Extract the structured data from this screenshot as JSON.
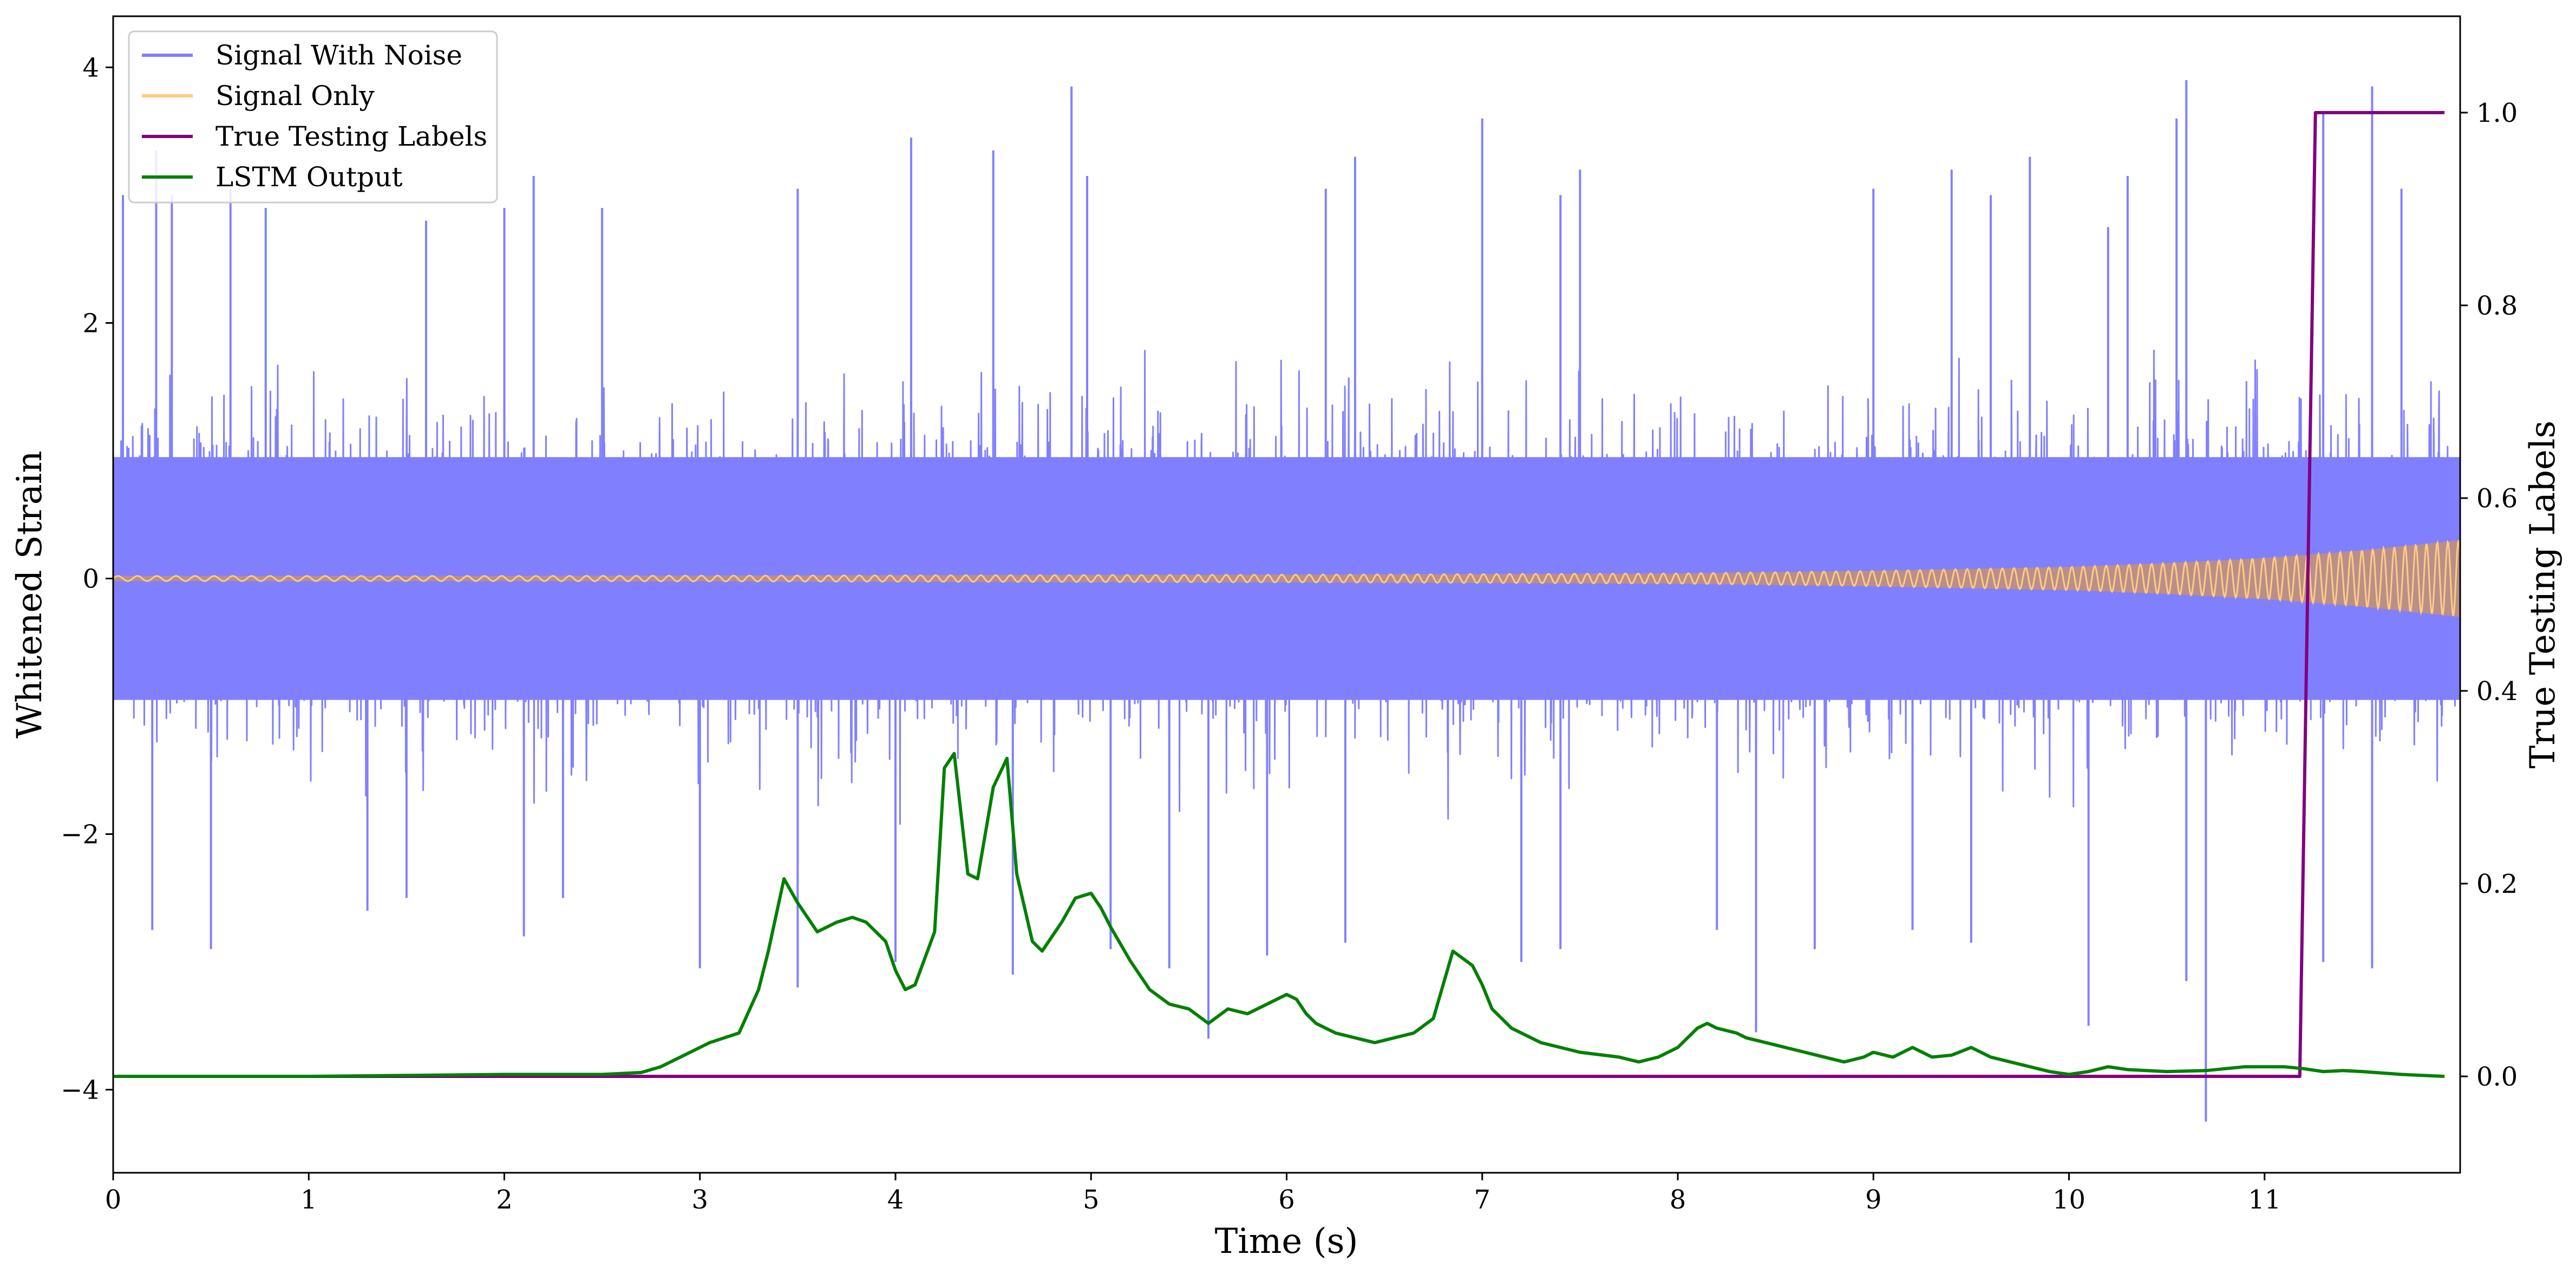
{
  "chart_data": {
    "type": "line",
    "title": "",
    "xlabel": "Time (s)",
    "ylabel_left": "Whitened Strain",
    "ylabel_right": "True Testing Labels",
    "xlim": [
      0,
      12
    ],
    "ylim_left": [
      -4.65,
      4.4
    ],
    "ylim_right": [
      -0.1,
      1.1
    ],
    "x_ticks": [
      0,
      1,
      2,
      3,
      4,
      5,
      6,
      7,
      8,
      9,
      10,
      11
    ],
    "x_tick_labels": [
      "0",
      "1",
      "2",
      "3",
      "4",
      "5",
      "6",
      "7",
      "8",
      "9",
      "10",
      "11"
    ],
    "y_left_ticks": [
      -4,
      -2,
      0,
      2,
      4
    ],
    "y_left_tick_labels": [
      "−4",
      "−2",
      "0",
      "2",
      "4"
    ],
    "y_right_ticks": [
      0.0,
      0.2,
      0.4,
      0.6,
      0.8,
      1.0
    ],
    "y_right_tick_labels": [
      "0.0",
      "0.2",
      "0.4",
      "0.6",
      "0.8",
      "1.0"
    ],
    "grid": false,
    "legend_position": "top-left",
    "colors": {
      "signal_with_noise": "#8080ff",
      "signal_only": "#ffcc80",
      "overlap_band": "#c0907c",
      "true_labels": "#800080",
      "lstm_output": "#008000"
    },
    "series": [
      {
        "name": "Signal With Noise",
        "axis": "left",
        "color": "#8080ff",
        "description_stats": {
          "approx_std": 0.55,
          "min": -4.25,
          "max": 3.95
        }
      },
      {
        "name": "Signal Only",
        "axis": "left",
        "color": "#ffcc80",
        "amplitude_envelope": {
          "x": [
            0,
            2,
            4,
            6,
            8,
            9,
            10,
            10.5,
            11,
            11.5,
            12
          ],
          "y": [
            0.02,
            0.02,
            0.025,
            0.03,
            0.04,
            0.06,
            0.09,
            0.12,
            0.16,
            0.22,
            0.3
          ]
        }
      },
      {
        "name": "True Testing Labels",
        "axis": "right",
        "color": "#800080",
        "x": [
          0,
          11.18,
          11.26,
          11.92
        ],
        "y": [
          0.0,
          0.0,
          1.0,
          1.0
        ]
      },
      {
        "name": "LSTM Output",
        "axis": "right",
        "color": "#008000",
        "x": [
          0,
          0.5,
          1.0,
          1.5,
          2.0,
          2.5,
          2.7,
          2.8,
          2.9,
          3.0,
          3.05,
          3.2,
          3.3,
          3.35,
          3.43,
          3.5,
          3.6,
          3.7,
          3.78,
          3.85,
          3.95,
          4.0,
          4.05,
          4.1,
          4.2,
          4.25,
          4.3,
          4.37,
          4.42,
          4.5,
          4.57,
          4.62,
          4.7,
          4.75,
          4.85,
          4.92,
          5.0,
          5.05,
          5.1,
          5.2,
          5.3,
          5.4,
          5.5,
          5.6,
          5.7,
          5.8,
          5.9,
          6.0,
          6.05,
          6.1,
          6.15,
          6.25,
          6.35,
          6.45,
          6.55,
          6.65,
          6.75,
          6.85,
          6.95,
          7.0,
          7.05,
          7.15,
          7.3,
          7.5,
          7.7,
          7.8,
          7.9,
          8.0,
          8.1,
          8.15,
          8.2,
          8.3,
          8.35,
          8.45,
          8.55,
          8.65,
          8.75,
          8.85,
          8.95,
          9.0,
          9.1,
          9.2,
          9.3,
          9.4,
          9.5,
          9.6,
          9.7,
          9.8,
          9.9,
          10.0,
          10.1,
          10.2,
          10.3,
          10.5,
          10.7,
          10.9,
          11.1,
          11.2,
          11.3,
          11.4,
          11.5,
          11.7,
          11.92
        ],
        "y": [
          0.0,
          0.0,
          0.0,
          0.001,
          0.002,
          0.002,
          0.004,
          0.01,
          0.02,
          0.03,
          0.035,
          0.045,
          0.09,
          0.13,
          0.205,
          0.18,
          0.15,
          0.16,
          0.165,
          0.16,
          0.14,
          0.11,
          0.09,
          0.095,
          0.15,
          0.32,
          0.335,
          0.21,
          0.205,
          0.3,
          0.33,
          0.21,
          0.14,
          0.13,
          0.16,
          0.185,
          0.19,
          0.175,
          0.155,
          0.12,
          0.09,
          0.075,
          0.07,
          0.055,
          0.07,
          0.065,
          0.075,
          0.085,
          0.08,
          0.065,
          0.055,
          0.045,
          0.04,
          0.035,
          0.04,
          0.045,
          0.06,
          0.13,
          0.115,
          0.095,
          0.07,
          0.05,
          0.035,
          0.025,
          0.02,
          0.015,
          0.02,
          0.03,
          0.05,
          0.055,
          0.05,
          0.045,
          0.04,
          0.035,
          0.03,
          0.025,
          0.02,
          0.015,
          0.02,
          0.025,
          0.02,
          0.03,
          0.02,
          0.022,
          0.03,
          0.02,
          0.015,
          0.01,
          0.005,
          0.002,
          0.005,
          0.01,
          0.007,
          0.005,
          0.006,
          0.01,
          0.01,
          0.008,
          0.005,
          0.006,
          0.005,
          0.002,
          0.0
        ]
      }
    ],
    "noise_spikes": {
      "positive": [
        [
          0.05,
          3.0
        ],
        [
          0.22,
          3.35
        ],
        [
          0.3,
          3.0
        ],
        [
          0.6,
          3.05
        ],
        [
          0.78,
          2.9
        ],
        [
          1.6,
          2.8
        ],
        [
          2.0,
          2.9
        ],
        [
          2.15,
          3.15
        ],
        [
          2.5,
          2.9
        ],
        [
          3.5,
          3.05
        ],
        [
          4.08,
          3.45
        ],
        [
          4.5,
          3.35
        ],
        [
          4.9,
          3.85
        ],
        [
          4.98,
          3.15
        ],
        [
          6.2,
          3.05
        ],
        [
          6.35,
          3.3
        ],
        [
          7.0,
          3.6
        ],
        [
          7.4,
          3.0
        ],
        [
          7.5,
          3.2
        ],
        [
          9.0,
          3.05
        ],
        [
          9.4,
          3.2
        ],
        [
          9.6,
          3.0
        ],
        [
          9.8,
          3.3
        ],
        [
          10.2,
          2.75
        ],
        [
          10.3,
          3.15
        ],
        [
          10.55,
          3.6
        ],
        [
          10.6,
          3.9
        ],
        [
          11.3,
          3.65
        ],
        [
          11.55,
          3.85
        ],
        [
          11.7,
          3.05
        ]
      ],
      "negative": [
        [
          0.2,
          -2.75
        ],
        [
          0.5,
          -2.9
        ],
        [
          1.3,
          -2.6
        ],
        [
          1.5,
          -2.5
        ],
        [
          2.1,
          -2.8
        ],
        [
          2.3,
          -2.5
        ],
        [
          3.0,
          -3.05
        ],
        [
          3.5,
          -3.2
        ],
        [
          4.0,
          -3.0
        ],
        [
          4.6,
          -3.1
        ],
        [
          5.1,
          -2.9
        ],
        [
          5.4,
          -3.05
        ],
        [
          5.6,
          -3.6
        ],
        [
          5.9,
          -2.95
        ],
        [
          6.3,
          -2.85
        ],
        [
          7.2,
          -3.0
        ],
        [
          7.4,
          -2.9
        ],
        [
          8.2,
          -2.75
        ],
        [
          8.4,
          -3.55
        ],
        [
          8.7,
          -2.9
        ],
        [
          9.2,
          -2.75
        ],
        [
          9.5,
          -2.85
        ],
        [
          10.1,
          -3.5
        ],
        [
          10.6,
          -3.15
        ],
        [
          10.7,
          -4.25
        ],
        [
          11.3,
          -3.0
        ],
        [
          11.55,
          -3.05
        ]
      ]
    },
    "legend": [
      {
        "label": "Signal With Noise",
        "color": "#8080ff"
      },
      {
        "label": "Signal Only",
        "color": "#ffcc80"
      },
      {
        "label": "True Testing Labels",
        "color": "#800080"
      },
      {
        "label": "LSTM Output",
        "color": "#008000"
      }
    ]
  }
}
